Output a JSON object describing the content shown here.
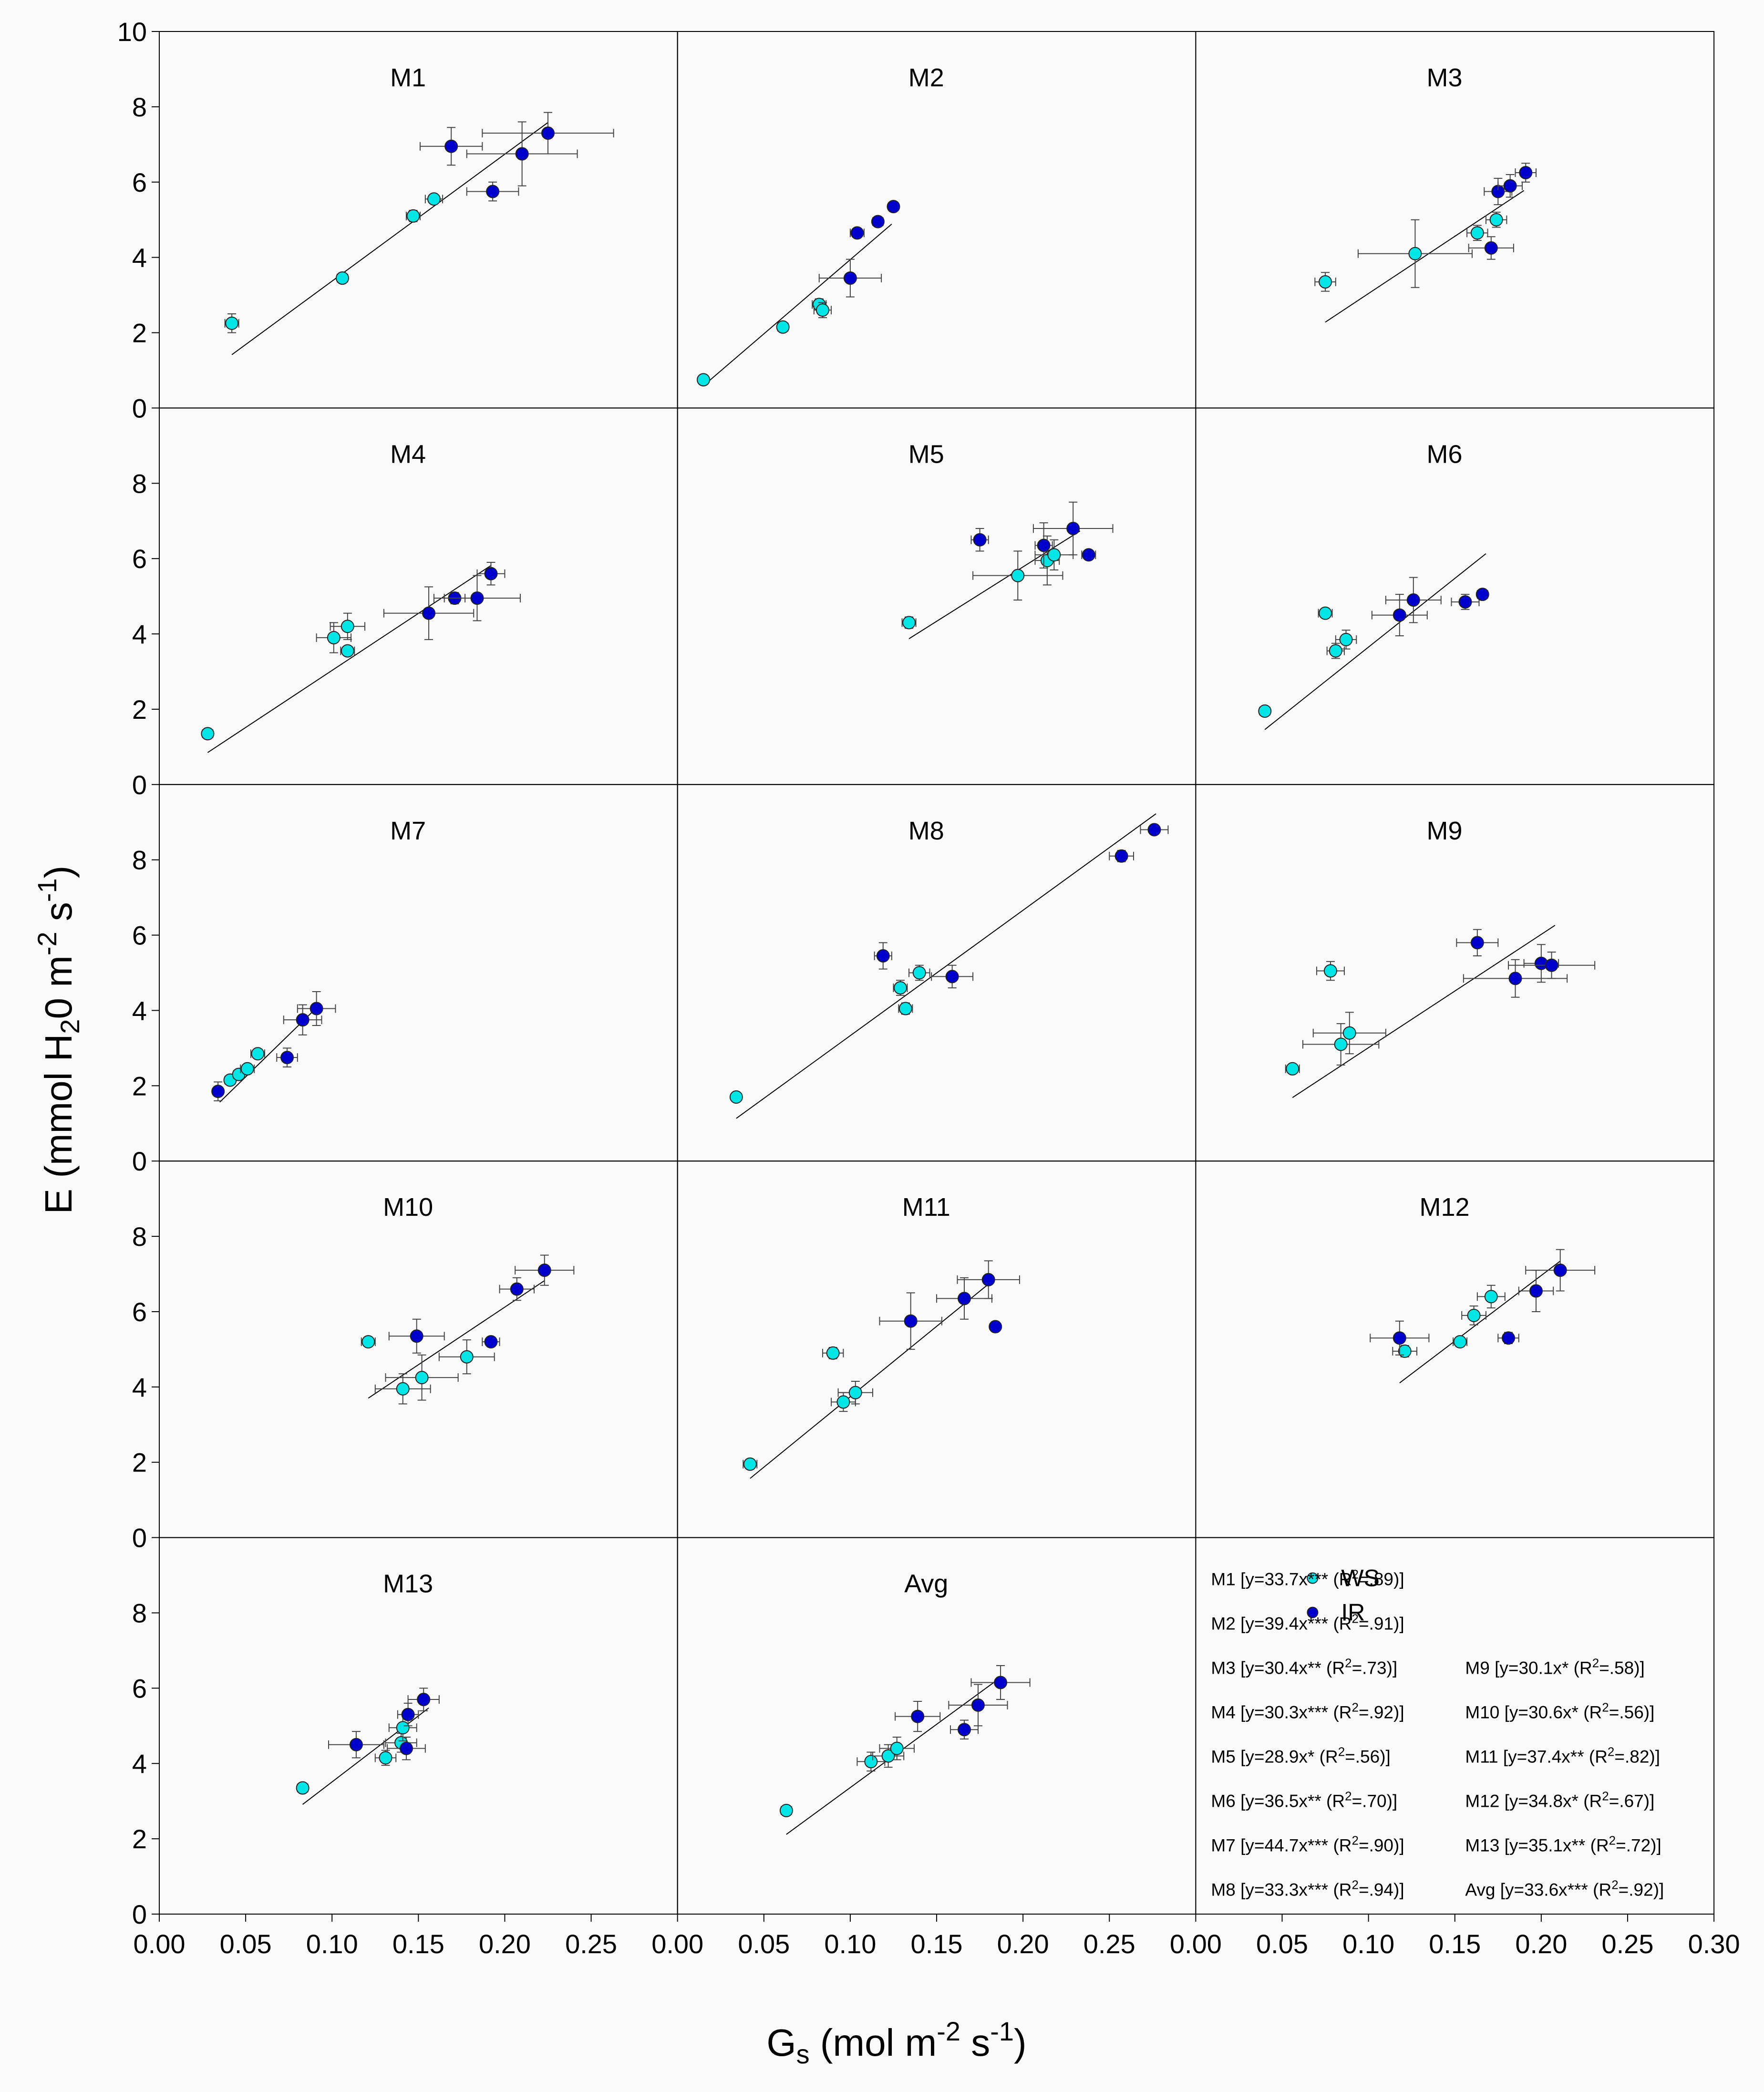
{
  "chart_data": {
    "type": "scatter",
    "xlabel": "Gs (mol m-2 s-1)",
    "ylabel": "E (mmol H2O m-2 s-1)",
    "xlim": [
      0,
      0.3
    ],
    "ylim": [
      0,
      10
    ],
    "x_ticks": [
      "0.00",
      "0.05",
      "0.10",
      "0.15",
      "0.20",
      "0.25"
    ],
    "x_ticks_last": [
      "0.00",
      "0.05",
      "0.10",
      "0.15",
      "0.20",
      "0.25",
      "0.30"
    ],
    "y_ticks": [
      "0",
      "2",
      "4",
      "6",
      "8"
    ],
    "y_ticks_top": [
      "0",
      "2",
      "4",
      "6",
      "8",
      "10"
    ],
    "series_names": [
      "WS",
      "IR"
    ],
    "colors": {
      "WS": "#00e5e5",
      "IR": "#0000cd",
      "line": "#000000"
    },
    "panels": [
      {
        "name": "M1",
        "slope": 33.7,
        "line_x": [
          0.042,
          0.225
        ],
        "WS": [
          [
            0.042,
            2.25,
            0.004,
            0.25
          ],
          [
            0.106,
            3.45,
            0.003,
            0.1
          ],
          [
            0.147,
            5.1,
            0.004,
            0.15
          ],
          [
            0.159,
            5.55,
            0.005,
            0.12
          ]
        ],
        "IR": [
          [
            0.169,
            6.95,
            0.018,
            0.5
          ],
          [
            0.21,
            6.75,
            0.032,
            0.85
          ],
          [
            0.193,
            5.75,
            0.015,
            0.25
          ],
          [
            0.225,
            7.3,
            0.038,
            0.55
          ]
        ]
      },
      {
        "name": "M2",
        "slope": 39.4,
        "line_x": [
          0.015,
          0.124
        ],
        "WS": [
          [
            0.015,
            0.75,
            0.002,
            0.05
          ],
          [
            0.061,
            2.15,
            0.003,
            0.1
          ],
          [
            0.082,
            2.75,
            0.004,
            0.15
          ],
          [
            0.084,
            2.6,
            0.005,
            0.2
          ]
        ],
        "IR": [
          [
            0.104,
            4.65,
            0.004,
            0.12
          ],
          [
            0.116,
            4.95,
            0.003,
            0.1
          ],
          [
            0.125,
            5.35,
            0.002,
            0.1
          ],
          [
            0.1,
            3.45,
            0.018,
            0.5
          ]
        ]
      },
      {
        "name": "M3",
        "slope": 30.4,
        "line_x": [
          0.075,
          0.19
        ],
        "WS": [
          [
            0.075,
            3.35,
            0.006,
            0.25
          ],
          [
            0.127,
            4.1,
            0.033,
            0.9
          ],
          [
            0.163,
            4.65,
            0.006,
            0.2
          ],
          [
            0.174,
            5.0,
            0.006,
            0.2
          ]
        ],
        "IR": [
          [
            0.171,
            4.25,
            0.013,
            0.3
          ],
          [
            0.175,
            5.75,
            0.008,
            0.35
          ],
          [
            0.182,
            5.9,
            0.007,
            0.3
          ],
          [
            0.191,
            6.25,
            0.006,
            0.25
          ]
        ]
      },
      {
        "name": "M4",
        "slope": 30.3,
        "line_x": [
          0.028,
          0.192
        ],
        "WS": [
          [
            0.028,
            1.35,
            0.003,
            0.1
          ],
          [
            0.101,
            3.9,
            0.01,
            0.4
          ],
          [
            0.109,
            3.55,
            0.004,
            0.1
          ],
          [
            0.109,
            4.2,
            0.01,
            0.35
          ]
        ],
        "IR": [
          [
            0.156,
            4.55,
            0.026,
            0.7
          ],
          [
            0.171,
            4.95,
            0.006,
            0.15
          ],
          [
            0.184,
            4.95,
            0.025,
            0.6
          ],
          [
            0.192,
            5.6,
            0.008,
            0.3
          ]
        ]
      },
      {
        "name": "M5",
        "slope": 28.9,
        "line_x": [
          0.134,
          0.233
        ],
        "WS": [
          [
            0.134,
            4.3,
            0.004,
            0.15
          ],
          [
            0.197,
            5.55,
            0.026,
            0.65
          ],
          [
            0.214,
            5.95,
            0.007,
            0.65
          ],
          [
            0.218,
            6.1,
            0.011,
            0.4
          ]
        ],
        "IR": [
          [
            0.175,
            6.5,
            0.005,
            0.3
          ],
          [
            0.212,
            6.35,
            0.005,
            0.6
          ],
          [
            0.229,
            6.8,
            0.023,
            0.7
          ],
          [
            0.238,
            6.1,
            0.004,
            0.1
          ]
        ]
      },
      {
        "name": "M6",
        "slope": 36.5,
        "line_x": [
          0.04,
          0.168
        ],
        "WS": [
          [
            0.04,
            1.95,
            0.003,
            0.1
          ],
          [
            0.075,
            4.55,
            0.004,
            0.1
          ],
          [
            0.081,
            3.55,
            0.005,
            0.2
          ],
          [
            0.087,
            3.85,
            0.006,
            0.25
          ]
        ],
        "IR": [
          [
            0.118,
            4.5,
            0.016,
            0.55
          ],
          [
            0.126,
            4.9,
            0.016,
            0.6
          ],
          [
            0.156,
            4.85,
            0.008,
            0.2
          ],
          [
            0.166,
            5.05,
            0.003,
            0.1
          ]
        ]
      },
      {
        "name": "M7",
        "slope": 44.7,
        "line_x": [
          0.035,
          0.092
        ],
        "WS": [
          [
            0.041,
            2.15,
            0.003,
            0.1
          ],
          [
            0.046,
            2.3,
            0.003,
            0.1
          ],
          [
            0.051,
            2.45,
            0.004,
            0.1
          ],
          [
            0.057,
            2.85,
            0.004,
            0.1
          ]
        ],
        "IR": [
          [
            0.034,
            1.85,
            0.002,
            0.25
          ],
          [
            0.074,
            2.75,
            0.006,
            0.25
          ],
          [
            0.083,
            3.75,
            0.011,
            0.4
          ],
          [
            0.091,
            4.05,
            0.011,
            0.45
          ]
        ]
      },
      {
        "name": "M8",
        "slope": 33.3,
        "line_x": [
          0.034,
          0.277
        ],
        "WS": [
          [
            0.034,
            1.7,
            0.002,
            0.05
          ],
          [
            0.129,
            4.6,
            0.004,
            0.2
          ],
          [
            0.132,
            4.05,
            0.004,
            0.15
          ],
          [
            0.14,
            5.0,
            0.006,
            0.2
          ]
        ],
        "IR": [
          [
            0.119,
            5.45,
            0.005,
            0.35
          ],
          [
            0.159,
            4.9,
            0.012,
            0.3
          ],
          [
            0.257,
            8.1,
            0.007,
            0.15
          ],
          [
            0.276,
            8.8,
            0.008,
            0.1
          ]
        ]
      },
      {
        "name": "M9",
        "slope": 30.1,
        "line_x": [
          0.056,
          0.208
        ],
        "WS": [
          [
            0.056,
            2.45,
            0.004,
            0.1
          ],
          [
            0.078,
            5.05,
            0.008,
            0.25
          ],
          [
            0.084,
            3.1,
            0.022,
            0.55
          ],
          [
            0.089,
            3.4,
            0.021,
            0.55
          ]
        ],
        "IR": [
          [
            0.163,
            5.8,
            0.012,
            0.35
          ],
          [
            0.185,
            4.85,
            0.03,
            0.5
          ],
          [
            0.2,
            5.25,
            0.01,
            0.5
          ],
          [
            0.206,
            5.2,
            0.025,
            0.35
          ]
        ]
      },
      {
        "name": "M10",
        "slope": 30.6,
        "line_x": [
          0.121,
          0.223
        ],
        "WS": [
          [
            0.121,
            5.2,
            0.004,
            0.1
          ],
          [
            0.141,
            3.95,
            0.016,
            0.4
          ],
          [
            0.152,
            4.25,
            0.021,
            0.6
          ],
          [
            0.178,
            4.8,
            0.016,
            0.45
          ]
        ],
        "IR": [
          [
            0.149,
            5.35,
            0.016,
            0.45
          ],
          [
            0.192,
            5.2,
            0.005,
            0.1
          ],
          [
            0.207,
            6.6,
            0.01,
            0.3
          ],
          [
            0.223,
            7.1,
            0.017,
            0.4
          ]
        ]
      },
      {
        "name": "M11",
        "slope": 37.4,
        "line_x": [
          0.042,
          0.18
        ],
        "WS": [
          [
            0.042,
            1.95,
            0.004,
            0.1
          ],
          [
            0.09,
            4.9,
            0.006,
            0.15
          ],
          [
            0.096,
            3.6,
            0.007,
            0.25
          ],
          [
            0.103,
            3.85,
            0.01,
            0.3
          ]
        ],
        "IR": [
          [
            0.135,
            5.75,
            0.018,
            0.75
          ],
          [
            0.166,
            6.35,
            0.016,
            0.55
          ],
          [
            0.18,
            6.85,
            0.018,
            0.5
          ],
          [
            0.184,
            5.6,
            0.002,
            0.05
          ]
        ]
      },
      {
        "name": "M12",
        "slope": 34.8,
        "line_x": [
          0.118,
          0.211
        ],
        "WS": [
          [
            0.121,
            4.95,
            0.007,
            0.15
          ],
          [
            0.153,
            5.2,
            0.004,
            0.1
          ],
          [
            0.161,
            5.9,
            0.007,
            0.25
          ],
          [
            0.171,
            6.4,
            0.008,
            0.3
          ]
        ],
        "IR": [
          [
            0.118,
            5.3,
            0.017,
            0.45
          ],
          [
            0.181,
            5.3,
            0.006,
            0.15
          ],
          [
            0.197,
            6.55,
            0.01,
            0.55
          ],
          [
            0.211,
            7.1,
            0.02,
            0.55
          ]
        ]
      },
      {
        "name": "M13",
        "slope": 35.1,
        "line_x": [
          0.083,
          0.156
        ],
        "WS": [
          [
            0.083,
            3.35,
            0.003,
            0.1
          ],
          [
            0.131,
            4.15,
            0.006,
            0.2
          ],
          [
            0.14,
            4.55,
            0.009,
            0.25
          ],
          [
            0.141,
            4.95,
            0.008,
            0.35
          ]
        ],
        "IR": [
          [
            0.114,
            4.5,
            0.016,
            0.35
          ],
          [
            0.143,
            4.4,
            0.011,
            0.3
          ],
          [
            0.144,
            5.3,
            0.006,
            0.3
          ],
          [
            0.153,
            5.7,
            0.009,
            0.3
          ]
        ]
      },
      {
        "name": "Avg",
        "slope": 33.6,
        "line_x": [
          0.063,
          0.185
        ],
        "WS": [
          [
            0.063,
            2.75,
            0.003,
            0.1
          ],
          [
            0.112,
            4.05,
            0.008,
            0.25
          ],
          [
            0.122,
            4.2,
            0.009,
            0.3
          ],
          [
            0.127,
            4.4,
            0.01,
            0.3
          ]
        ],
        "IR": [
          [
            0.139,
            5.25,
            0.013,
            0.4
          ],
          [
            0.166,
            4.9,
            0.008,
            0.25
          ],
          [
            0.174,
            5.55,
            0.017,
            0.55
          ],
          [
            0.187,
            6.15,
            0.017,
            0.45
          ]
        ]
      }
    ],
    "legend": {
      "ws_label": "WS",
      "ir_label": "IR",
      "entries_left": [
        {
          "head": "M1 [y=33.7x*** (R",
          "sup": "2",
          "tail": "=.89)]"
        },
        {
          "head": "M2 [y=39.4x*** (R",
          "sup": "2",
          "tail": "=.91)]"
        },
        {
          "head": "M3 [y=30.4x** (R",
          "sup": "2",
          "tail": "=.73)]"
        },
        {
          "head": "M4 [y=30.3x*** (R",
          "sup": "2",
          "tail": "=.92)]"
        },
        {
          "head": "M5 [y=28.9x* (R",
          "sup": "2",
          "tail": "=.56)]"
        },
        {
          "head": "M6 [y=36.5x** (R",
          "sup": "2",
          "tail": "=.70)]"
        },
        {
          "head": "M7 [y=44.7x*** (R",
          "sup": "2",
          "tail": "=.90)]"
        },
        {
          "head": "M8 [y=33.3x*** (R",
          "sup": "2",
          "tail": "=.94)]"
        }
      ],
      "entries_right": [
        {
          "head": "M9 [y=30.1x* (R",
          "sup": "2",
          "tail": "=.58)]"
        },
        {
          "head": "M10 [y=30.6x* (R",
          "sup": "2",
          "tail": "=.56)]"
        },
        {
          "head": "M11 [y=37.4x** (R",
          "sup": "2",
          "tail": "=.82)]"
        },
        {
          "head": "M12 [y=34.8x* (R",
          "sup": "2",
          "tail": "=.67)]"
        },
        {
          "head": "M13 [y=35.1x** (R",
          "sup": "2",
          "tail": "=.72)]"
        },
        {
          "head": "Avg [y=33.6x*** (R",
          "sup": "2",
          "tail": "=.92)]"
        }
      ]
    }
  }
}
